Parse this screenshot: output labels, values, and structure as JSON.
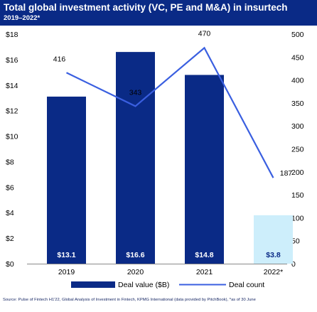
{
  "chart_data": {
    "type": "bar",
    "title": "Total global investment activity (VC, PE and M&A) in insurtech",
    "subtitle": "2019–2022*",
    "categories": [
      "2019",
      "2020",
      "2021",
      "2022*"
    ],
    "series": [
      {
        "name": "Deal value ($B)",
        "kind": "bar",
        "axis": "left",
        "values": [
          13.1,
          16.6,
          14.8,
          3.8
        ],
        "labels": [
          "$13.1",
          "$16.6",
          "$14.8",
          "$3.8"
        ],
        "colors": [
          "#0a2a86",
          "#0a2a86",
          "#0a2a86",
          "#cdeefb"
        ],
        "label_colors": [
          "#ffffff",
          "#ffffff",
          "#ffffff",
          "#0a2a86"
        ]
      },
      {
        "name": "Deal count",
        "kind": "line",
        "axis": "right",
        "values": [
          416,
          343,
          470,
          187
        ],
        "labels": [
          "416",
          "343",
          "470",
          "187"
        ],
        "color": "#3a5fe0"
      }
    ],
    "ylim_left": [
      0,
      18
    ],
    "yticks_left": [
      "$0",
      "$2",
      "$4",
      "$6",
      "$8",
      "$10",
      "$12",
      "$14",
      "$16",
      "$18"
    ],
    "ylim_right": [
      0,
      500
    ],
    "yticks_right": [
      "0",
      "50",
      "100",
      "150",
      "200",
      "250",
      "300",
      "350",
      "400",
      "450",
      "500"
    ],
    "grid": false,
    "legend_position": "bottom"
  },
  "source": "Source: Pulse of Fintech H1'22, Global Analysis of Investment in Fintech, KPMG International (data provided by PitchBook), *as of 30 June"
}
